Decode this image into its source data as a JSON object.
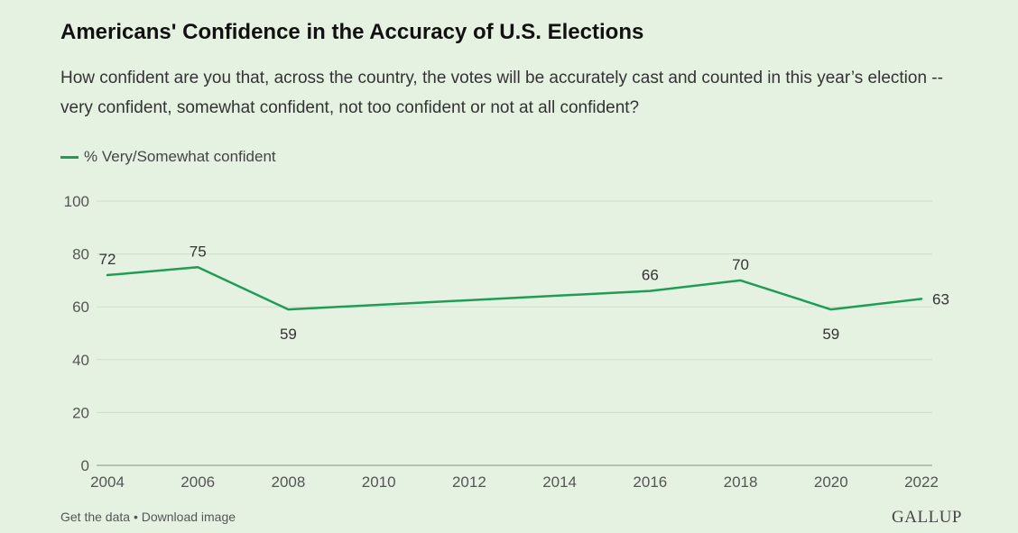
{
  "header": {
    "title": "Americans' Confidence in the Accuracy of U.S. Elections",
    "subtitle": "How confident are you that, across the country, the votes will be accurately cast and counted in this year’s election -- very confident, somewhat confident, not too confident or not at all confident?"
  },
  "footer": {
    "get_data": "Get the data",
    "separator": "•",
    "download": "Download image",
    "brand": "GALLUP"
  },
  "colors": {
    "series": "#1f9d57",
    "background": "#e6f2e1",
    "grid": "#cfdccb"
  },
  "chart_data": {
    "type": "line",
    "title": "Americans' Confidence in the Accuracy of U.S. Elections",
    "xlabel": "",
    "ylabel": "",
    "xlim": [
      2004,
      2022
    ],
    "ylim": [
      0,
      100
    ],
    "x_ticks": [
      2004,
      2006,
      2008,
      2010,
      2012,
      2014,
      2016,
      2018,
      2020,
      2022
    ],
    "y_ticks": [
      0,
      20,
      40,
      60,
      80,
      100
    ],
    "grid": true,
    "legend_position": "top-left",
    "series": [
      {
        "name": "% Very/Somewhat confident",
        "x": [
          2004,
          2006,
          2008,
          2016,
          2018,
          2020,
          2022
        ],
        "values": [
          72,
          75,
          59,
          66,
          70,
          59,
          63
        ],
        "label_positions": [
          "above",
          "above",
          "below",
          "above",
          "above",
          "below",
          "right"
        ]
      }
    ]
  }
}
